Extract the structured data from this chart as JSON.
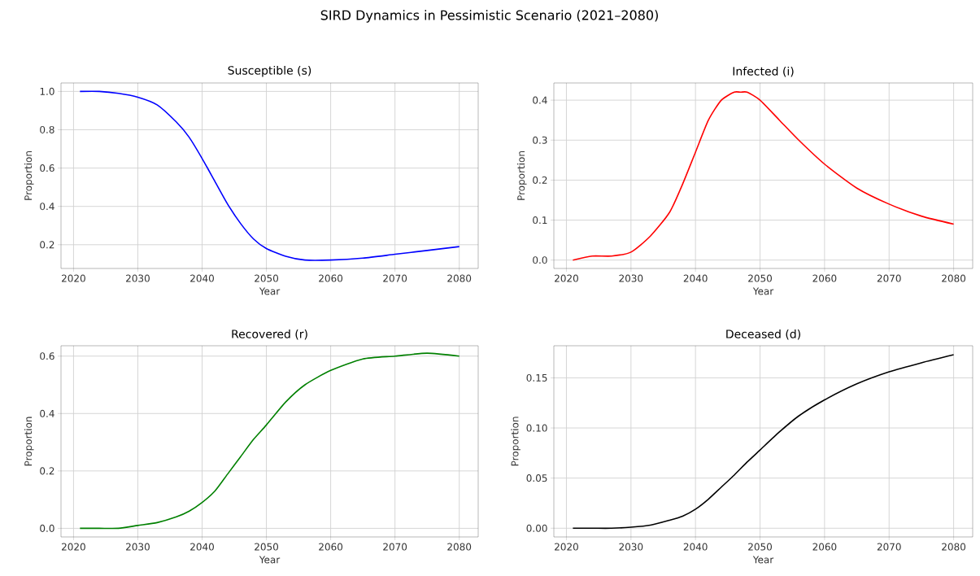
{
  "chart_data": [
    {
      "type": "line",
      "title": "Susceptible (s)",
      "xlabel": "Year",
      "ylabel": "Proportion",
      "grid": true,
      "annotations": [
        "SIRD Dynamics in Pessimistic Scenario (2021–2080)"
      ],
      "x": [
        2021,
        2024,
        2027,
        2030,
        2033,
        2036,
        2038,
        2040,
        2042,
        2044,
        2046,
        2048,
        2050,
        2053,
        2056,
        2060,
        2065,
        2070,
        2075,
        2080
      ],
      "series": [
        {
          "color": "#0000ff",
          "values": [
            1.0,
            1.0,
            0.99,
            0.97,
            0.93,
            0.84,
            0.76,
            0.65,
            0.53,
            0.41,
            0.31,
            0.23,
            0.18,
            0.14,
            0.12,
            0.12,
            0.13,
            0.15,
            0.17,
            0.19
          ]
        }
      ],
      "xlim": [
        2018.05,
        2082.95
      ],
      "ylim": [
        0.076,
        1.044
      ],
      "xticks": [
        2020,
        2030,
        2040,
        2050,
        2060,
        2070,
        2080
      ],
      "yticks": [
        {
          "value": 0.2,
          "label": "0.2"
        },
        {
          "value": 0.4,
          "label": "0.4"
        },
        {
          "value": 0.6,
          "label": "0.6"
        },
        {
          "value": 0.8,
          "label": "0.8"
        },
        {
          "value": 1.0,
          "label": "1.0"
        }
      ]
    },
    {
      "type": "line",
      "title": "Infected (i)",
      "xlabel": "Year",
      "ylabel": "Proportion",
      "grid": true,
      "x": [
        2021,
        2024,
        2027,
        2030,
        2033,
        2036,
        2038,
        2040,
        2042,
        2044,
        2046,
        2047,
        2048,
        2050,
        2053,
        2056,
        2060,
        2065,
        2070,
        2075,
        2080
      ],
      "series": [
        {
          "color": "#ff0000",
          "values": [
            0,
            0.01,
            0.01,
            0.02,
            0.06,
            0.12,
            0.19,
            0.27,
            0.35,
            0.4,
            0.42,
            0.42,
            0.42,
            0.4,
            0.35,
            0.3,
            0.24,
            0.18,
            0.14,
            0.11,
            0.09
          ]
        }
      ],
      "xlim": [
        2018.05,
        2082.95
      ],
      "ylim": [
        -0.021,
        0.443
      ],
      "xticks": [
        2020,
        2030,
        2040,
        2050,
        2060,
        2070,
        2080
      ],
      "yticks": [
        {
          "value": 0,
          "label": "0.0"
        },
        {
          "value": 0.1,
          "label": "0.1"
        },
        {
          "value": 0.2,
          "label": "0.2"
        },
        {
          "value": 0.3,
          "label": "0.3"
        },
        {
          "value": 0.4,
          "label": "0.4"
        }
      ]
    },
    {
      "type": "line",
      "title": "Recovered (r)",
      "xlabel": "Year",
      "ylabel": "Proportion",
      "grid": true,
      "x": [
        2021,
        2024,
        2027,
        2030,
        2033,
        2036,
        2038,
        2040,
        2042,
        2044,
        2046,
        2048,
        2050,
        2053,
        2056,
        2060,
        2065,
        2070,
        2075,
        2080
      ],
      "series": [
        {
          "color": "#008000",
          "values": [
            0,
            0,
            0,
            0.01,
            0.02,
            0.04,
            0.06,
            0.09,
            0.13,
            0.19,
            0.25,
            0.31,
            0.36,
            0.44,
            0.5,
            0.55,
            0.59,
            0.6,
            0.61,
            0.6
          ]
        }
      ],
      "xlim": [
        2018.05,
        2082.95
      ],
      "ylim": [
        -0.03,
        0.636
      ],
      "xticks": [
        2020,
        2030,
        2040,
        2050,
        2060,
        2070,
        2080
      ],
      "yticks": [
        {
          "value": 0,
          "label": "0.0"
        },
        {
          "value": 0.2,
          "label": "0.2"
        },
        {
          "value": 0.4,
          "label": "0.4"
        },
        {
          "value": 0.6,
          "label": "0.6"
        }
      ]
    },
    {
      "type": "line",
      "title": "Deceased (d)",
      "xlabel": "Year",
      "ylabel": "Proportion",
      "grid": true,
      "x": [
        2021,
        2024,
        2027,
        2030,
        2033,
        2036,
        2038,
        2040,
        2042,
        2044,
        2046,
        2048,
        2050,
        2053,
        2056,
        2060,
        2065,
        2070,
        2075,
        2080
      ],
      "series": [
        {
          "color": "#000000",
          "values": [
            0,
            0,
            0,
            0.001,
            0.003,
            0.008,
            0.012,
            0.019,
            0.029,
            0.041,
            0.053,
            0.066,
            0.078,
            0.096,
            0.112,
            0.128,
            0.144,
            0.156,
            0.165,
            0.173
          ]
        }
      ],
      "xlim": [
        2018.05,
        2082.95
      ],
      "ylim": [
        -0.0087,
        0.182
      ],
      "xticks": [
        2020,
        2030,
        2040,
        2050,
        2060,
        2070,
        2080
      ],
      "yticks": [
        {
          "value": 0,
          "label": "0.00"
        },
        {
          "value": 0.05,
          "label": "0.05"
        },
        {
          "value": 0.1,
          "label": "0.10"
        },
        {
          "value": 0.15,
          "label": "0.15"
        }
      ]
    }
  ]
}
